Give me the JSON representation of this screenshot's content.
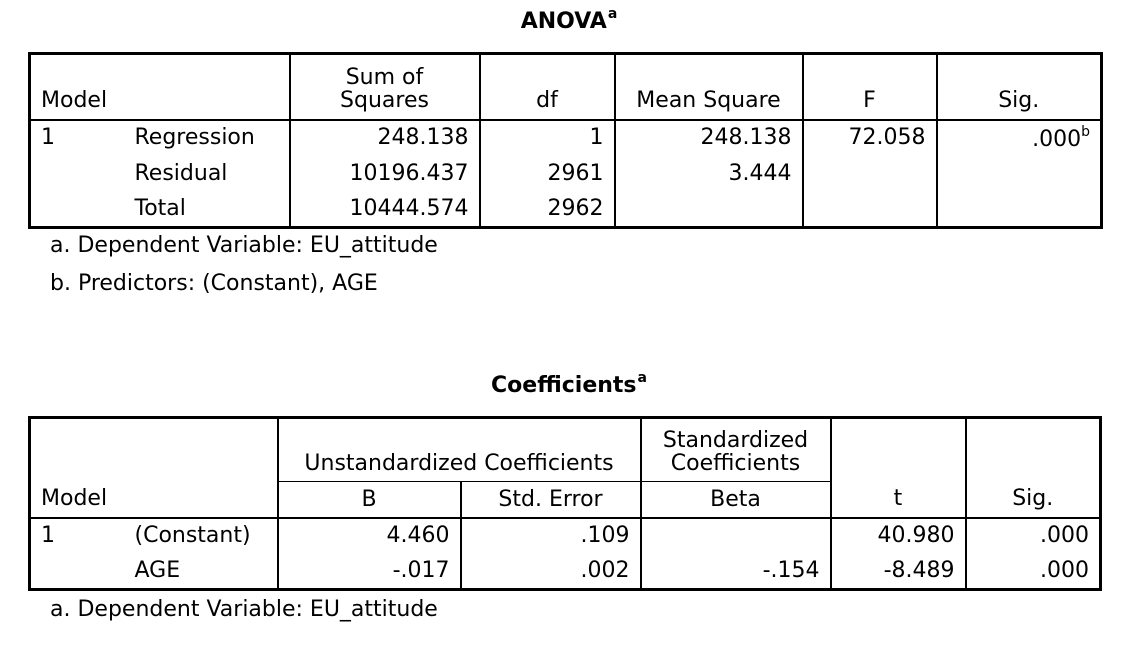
{
  "anova": {
    "title": "ANOVA",
    "title_sup": "a",
    "headers": {
      "model": "Model",
      "ss_line1": "Sum of",
      "ss_line2": "Squares",
      "df": "df",
      "ms": "Mean Square",
      "f": "F",
      "sig": "Sig."
    },
    "model_num": "1",
    "rows": [
      {
        "label": "Regression",
        "ss": "248.138",
        "df": "1",
        "ms": "248.138",
        "f": "72.058",
        "sig": ".000",
        "sig_sup": "b"
      },
      {
        "label": "Residual",
        "ss": "10196.437",
        "df": "2961",
        "ms": "3.444",
        "f": "",
        "sig": ""
      },
      {
        "label": "Total",
        "ss": "10444.574",
        "df": "2962",
        "ms": "",
        "f": "",
        "sig": ""
      }
    ],
    "notes": [
      "a. Dependent Variable: EU_attitude",
      "b. Predictors: (Constant), AGE"
    ]
  },
  "coefficients": {
    "title": "Coefficients",
    "title_sup": "a",
    "headers": {
      "model": "Model",
      "unstd": "Unstandardized Coefficients",
      "std_line1": "Standardized",
      "std_line2": "Coefficients",
      "b": "B",
      "se": "Std. Error",
      "beta": "Beta",
      "t": "t",
      "sig": "Sig."
    },
    "model_num": "1",
    "rows": [
      {
        "label": "(Constant)",
        "b": "4.460",
        "se": ".109",
        "beta": "",
        "t": "40.980",
        "sig": ".000"
      },
      {
        "label": "AGE",
        "b": "-.017",
        "se": ".002",
        "beta": "-.154",
        "t": "-8.489",
        "sig": ".000"
      }
    ],
    "notes": [
      "a. Dependent Variable: EU_attitude"
    ]
  }
}
